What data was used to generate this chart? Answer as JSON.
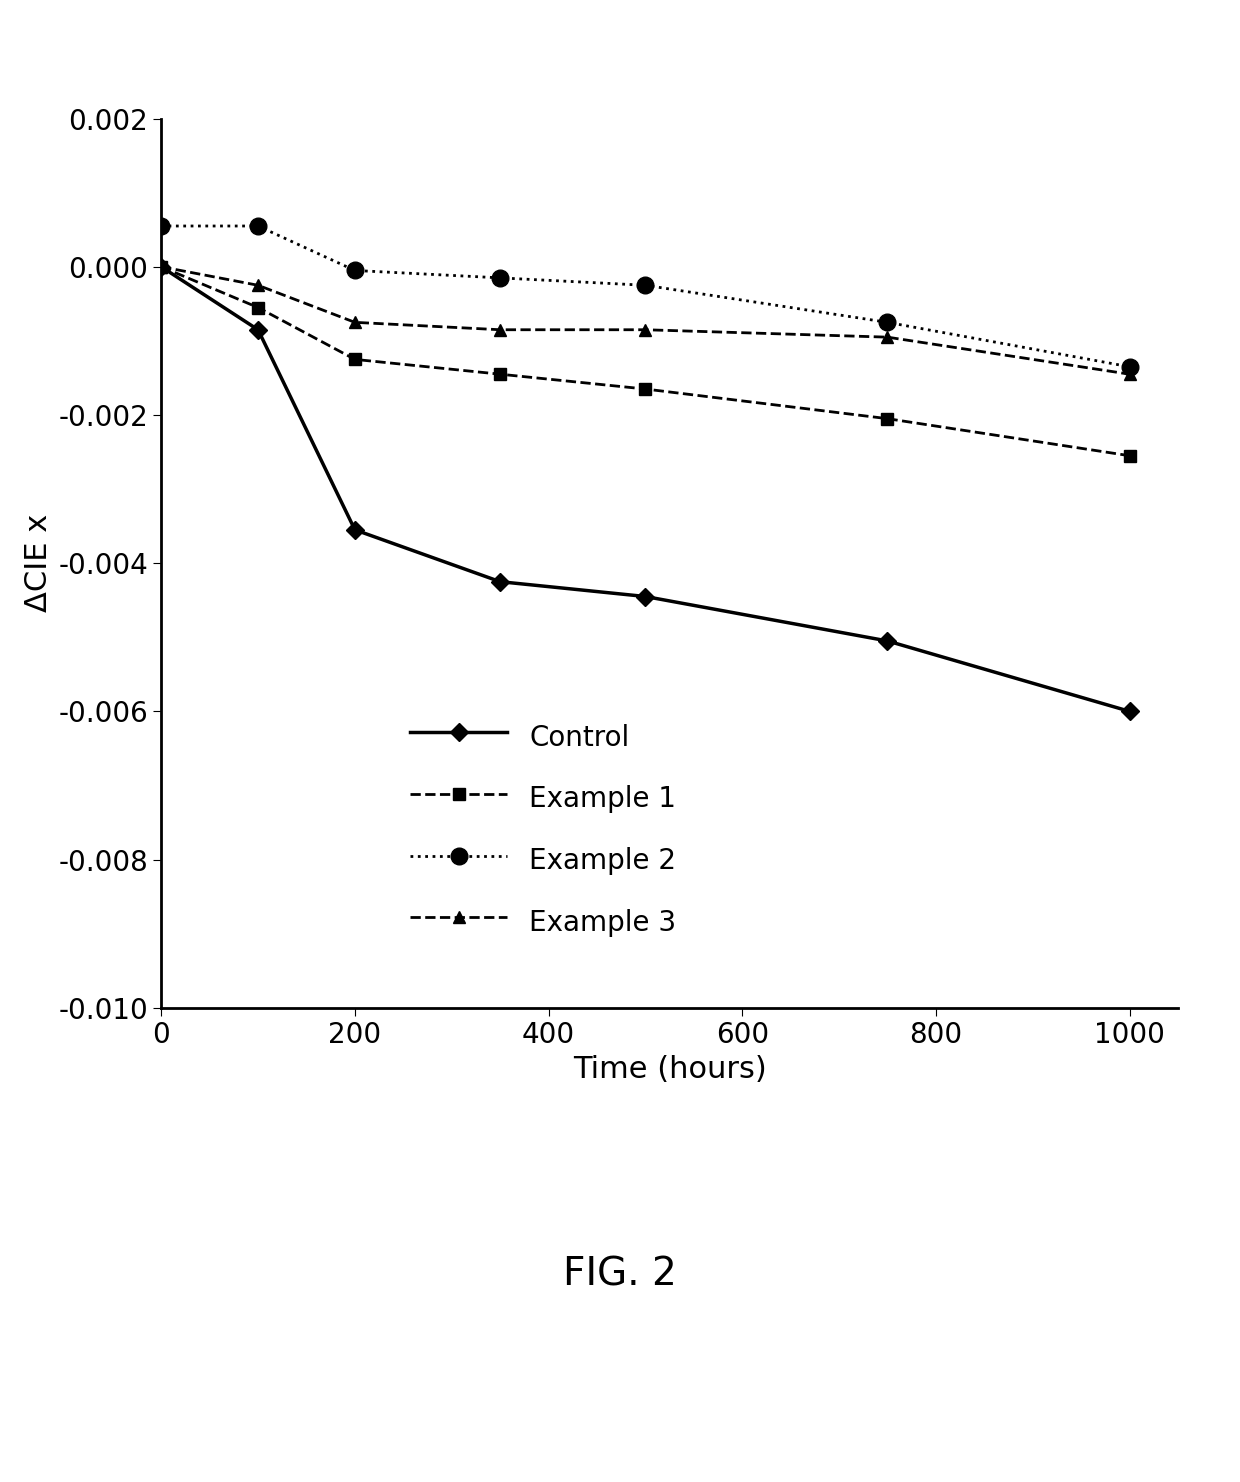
{
  "series": [
    {
      "label": "Control",
      "linestyle": "-",
      "marker": "D",
      "markersize": 9,
      "linewidth": 2.5,
      "x": [
        0,
        100,
        200,
        350,
        500,
        750,
        1000
      ],
      "y": [
        0.0,
        -0.00085,
        -0.00355,
        -0.00425,
        -0.00445,
        -0.00505,
        -0.006
      ]
    },
    {
      "label": "Example 1",
      "linestyle": "--",
      "marker": "s",
      "markersize": 9,
      "linewidth": 2.0,
      "x": [
        0,
        100,
        200,
        350,
        500,
        750,
        1000
      ],
      "y": [
        0.0,
        -0.00055,
        -0.00125,
        -0.00145,
        -0.00165,
        -0.00205,
        -0.00255
      ]
    },
    {
      "label": "Example 2",
      "linestyle": ":",
      "marker": "o",
      "markersize": 12,
      "linewidth": 2.0,
      "x": [
        0,
        100,
        200,
        350,
        500,
        750,
        1000
      ],
      "y": [
        0.00055,
        0.00055,
        -5e-05,
        -0.00015,
        -0.00025,
        -0.00075,
        -0.00135
      ]
    },
    {
      "label": "Example 3",
      "linestyle": "--",
      "marker": "^",
      "markersize": 9,
      "linewidth": 2.0,
      "x": [
        0,
        100,
        200,
        350,
        500,
        750,
        1000
      ],
      "y": [
        0.0,
        -0.00025,
        -0.00075,
        -0.00085,
        -0.00085,
        -0.00095,
        -0.00145
      ]
    }
  ],
  "xlabel": "Time (hours)",
  "ylabel": "ΔCIE x",
  "xlim": [
    0,
    1050
  ],
  "ylim": [
    -0.01,
    0.002
  ],
  "xticks": [
    0,
    200,
    400,
    600,
    800,
    1000
  ],
  "yticks": [
    -0.01,
    -0.008,
    -0.006,
    -0.004,
    -0.002,
    0.0,
    0.002
  ],
  "figure_caption": "FIG. 2",
  "background_color": "#ffffff",
  "line_color": "#000000",
  "xlabel_fontsize": 22,
  "ylabel_fontsize": 22,
  "tick_fontsize": 20,
  "legend_fontsize": 20,
  "caption_fontsize": 28
}
